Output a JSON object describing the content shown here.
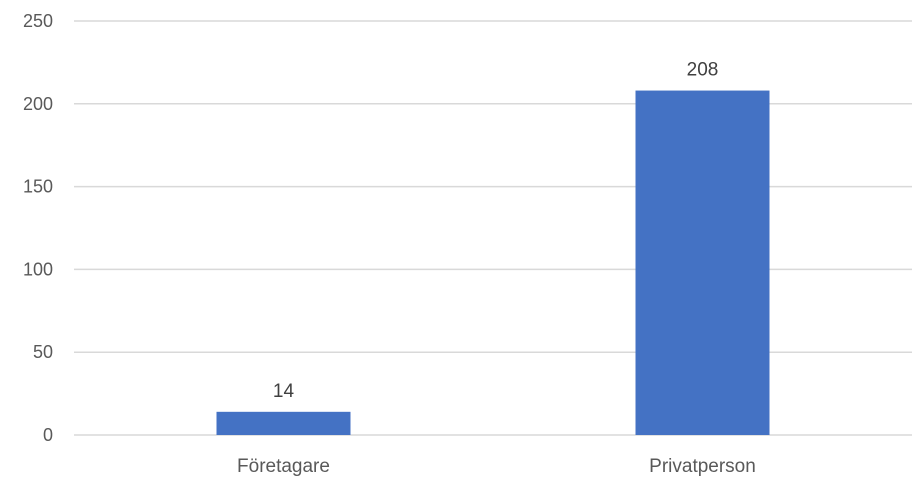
{
  "chart_data": {
    "type": "bar",
    "title": "",
    "xlabel": "",
    "ylabel": "",
    "categories": [
      "Företagare",
      "Privatperson"
    ],
    "values": [
      14,
      208
    ],
    "data_labels": [
      "14",
      "208"
    ],
    "ylim": [
      0,
      250
    ],
    "yticks": [
      0,
      50,
      100,
      150,
      200,
      250
    ],
    "ytick_labels": [
      "0",
      "50",
      "100",
      "150",
      "200",
      "250"
    ],
    "grid": true,
    "legend": "none",
    "bar_color": "#4472c4",
    "grid_color": "#d9d9d9"
  }
}
